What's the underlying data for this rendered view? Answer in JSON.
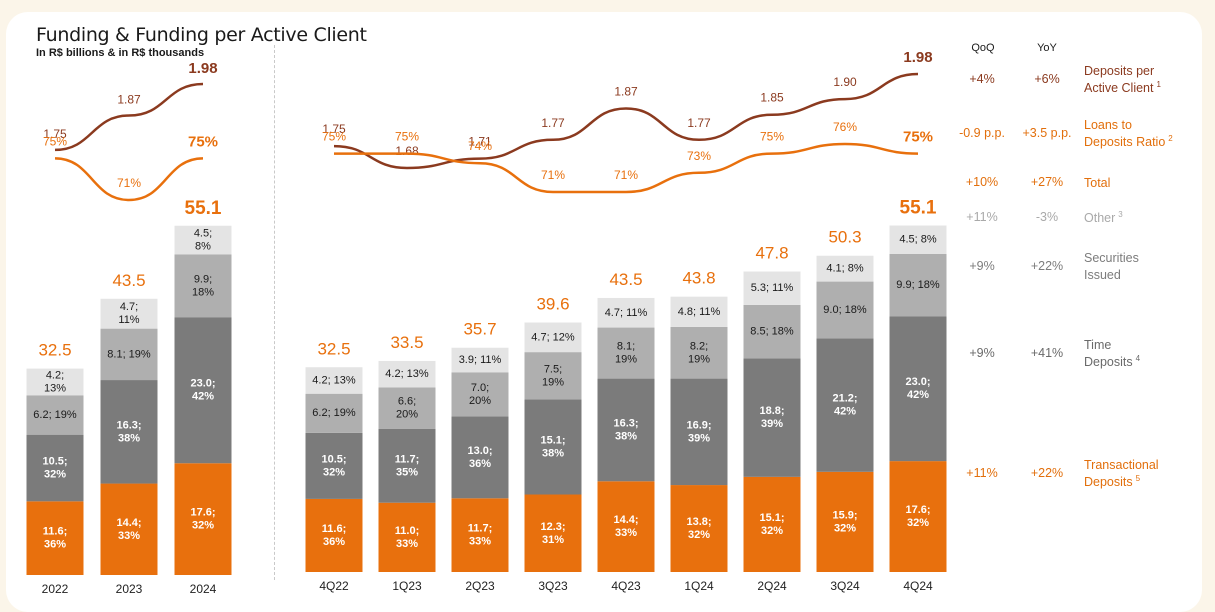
{
  "header": {
    "title": "Funding & Funding per Active Client",
    "subtitle": "In R$ billions & in R$ thousands"
  },
  "table": {
    "col_qoq": "QoQ",
    "col_yoy": "YoY",
    "rows": [
      {
        "key": "deposits_per_client",
        "qoq": "+4%",
        "yoy": "+6%",
        "label1": "Deposits per",
        "label2": "Active Client",
        "note": "1"
      },
      {
        "key": "loans_to_deposits",
        "qoq": "-0.9 p.p.",
        "yoy": "+3.5 p.p.",
        "label1": "Loans to",
        "label2": "Deposits Ratio",
        "note": "2"
      },
      {
        "key": "total",
        "qoq": "+10%",
        "yoy": "+27%",
        "label1": "Total",
        "label2": "",
        "note": ""
      },
      {
        "key": "other",
        "qoq": "+11%",
        "yoy": "-3%",
        "label1": "Other",
        "label2": "",
        "note": "3"
      },
      {
        "key": "securities",
        "qoq": "+9%",
        "yoy": "+22%",
        "label1": "Securities",
        "label2": "Issued",
        "note": ""
      },
      {
        "key": "time",
        "qoq": "+9%",
        "yoy": "+41%",
        "label1": "Time",
        "label2": "Deposits",
        "note": "4"
      },
      {
        "key": "transactional",
        "qoq": "+11%",
        "yoy": "+22%",
        "label1": "Transactional",
        "label2": "Deposits",
        "note": "5"
      }
    ]
  },
  "colors": {
    "transactional": "#e8700d",
    "time": "#7b7b7b",
    "securities": "#afafaf",
    "other": "#e4e4e4",
    "deposits_line": "#8b3a1f",
    "ratio_line": "#e8700d",
    "total_label": "#e8700d"
  },
  "chart_data": [
    {
      "type": "bar",
      "stacked": true,
      "categories": [
        "2022",
        "2023",
        "2024"
      ],
      "totals": [
        32.5,
        43.5,
        55.1
      ],
      "series": [
        {
          "name": "Transactional Deposits",
          "values": [
            11.6,
            14.4,
            17.6
          ],
          "labels": [
            "11.6;\n36%",
            "14.4;\n33%",
            "17.6;\n32%"
          ]
        },
        {
          "name": "Time Deposits",
          "values": [
            10.5,
            16.3,
            23.0
          ],
          "labels": [
            "10.5;\n32%",
            "16.3;\n38%",
            "23.0;\n42%"
          ]
        },
        {
          "name": "Securities Issued",
          "values": [
            6.2,
            8.1,
            9.9
          ],
          "labels": [
            "6.2; 19%",
            "8.1; 19%",
            "9.9;\n18%"
          ]
        },
        {
          "name": "Other",
          "values": [
            4.2,
            4.7,
            4.5
          ],
          "labels": [
            "4.2;\n13%",
            "4.7;\n11%",
            "4.5;\n8%"
          ]
        }
      ],
      "lines": [
        {
          "name": "Deposits per Active Client",
          "values": [
            1.75,
            1.87,
            1.98
          ],
          "labels": [
            "1.75",
            "1.87",
            "1.98"
          ]
        },
        {
          "name": "Loans to Deposits Ratio",
          "values": [
            75,
            71,
            75
          ],
          "labels": [
            "75%",
            "71%",
            "75%"
          ]
        }
      ]
    },
    {
      "type": "bar",
      "stacked": true,
      "categories": [
        "4Q22",
        "1Q23",
        "2Q23",
        "3Q23",
        "4Q23",
        "1Q24",
        "2Q24",
        "3Q24",
        "4Q24"
      ],
      "totals": [
        32.5,
        33.5,
        35.7,
        39.6,
        43.5,
        43.8,
        47.8,
        50.3,
        55.1
      ],
      "series": [
        {
          "name": "Transactional Deposits",
          "values": [
            11.6,
            11.0,
            11.7,
            12.3,
            14.4,
            13.8,
            15.1,
            15.9,
            17.6
          ],
          "labels": [
            "11.6;\n36%",
            "11.0;\n33%",
            "11.7;\n33%",
            "12.3;\n31%",
            "14.4;\n33%",
            "13.8;\n32%",
            "15.1;\n32%",
            "15.9;\n32%",
            "17.6;\n32%"
          ]
        },
        {
          "name": "Time Deposits",
          "values": [
            10.5,
            11.7,
            13.0,
            15.1,
            16.3,
            16.9,
            18.8,
            21.2,
            23.0
          ],
          "labels": [
            "10.5;\n32%",
            "11.7;\n35%",
            "13.0;\n36%",
            "15.1;\n38%",
            "16.3;\n38%",
            "16.9;\n39%",
            "18.8;\n39%",
            "21.2;\n42%",
            "23.0;\n42%"
          ]
        },
        {
          "name": "Securities Issued",
          "values": [
            6.2,
            6.6,
            7.0,
            7.5,
            8.1,
            8.2,
            8.5,
            9.0,
            9.9
          ],
          "labels": [
            "6.2; 19%",
            "6.6;\n20%",
            "7.0;\n20%",
            "7.5;\n19%",
            "8.1;\n19%",
            "8.2;\n19%",
            "8.5; 18%",
            "9.0; 18%",
            "9.9; 18%"
          ]
        },
        {
          "name": "Other",
          "values": [
            4.2,
            4.2,
            3.9,
            4.7,
            4.7,
            4.8,
            5.3,
            4.1,
            4.5
          ],
          "labels": [
            "4.2; 13%",
            "4.2; 13%",
            "3.9; 11%",
            "4.7; 12%",
            "4.7; 11%",
            "4.8; 11%",
            "5.3; 11%",
            "4.1; 8%",
            "4.5; 8%"
          ]
        }
      ],
      "lines": [
        {
          "name": "Deposits per Active Client",
          "values": [
            1.75,
            1.68,
            1.71,
            1.77,
            1.87,
            1.77,
            1.85,
            1.9,
            1.98
          ],
          "labels": [
            "1.75",
            "1.68",
            "1.71",
            "1.77",
            "1.87",
            "1.77",
            "1.85",
            "1.90",
            "1.98"
          ]
        },
        {
          "name": "Loans to Deposits Ratio",
          "values": [
            75,
            75,
            74,
            71,
            71,
            73,
            75,
            76,
            75
          ],
          "labels": [
            "75%",
            "75%",
            "74%",
            "71%",
            "71%",
            "73%",
            "75%",
            "76%",
            "75%"
          ]
        }
      ]
    }
  ]
}
